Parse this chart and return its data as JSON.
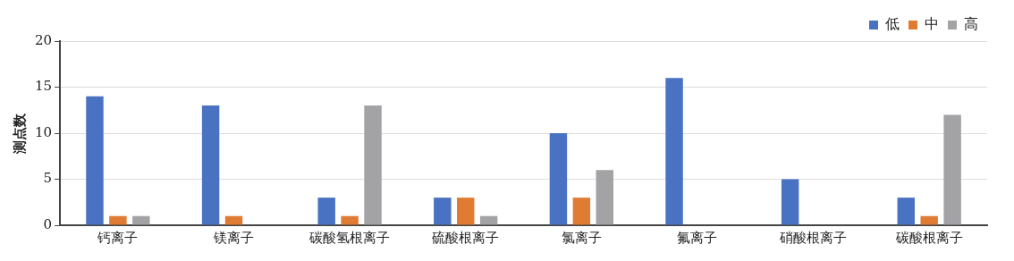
{
  "chart_data": {
    "type": "bar",
    "ylabel": "测点数",
    "categories": [
      "钙离子",
      "镁离子",
      "碳酸氢根离子",
      "硫酸根离子",
      "氯离子",
      "氟离子",
      "硝酸根离子",
      "碳酸根离子"
    ],
    "series": [
      {
        "name": "低",
        "color": "#4a72c2",
        "values": [
          14,
          13,
          3,
          3,
          10,
          16,
          5,
          3
        ]
      },
      {
        "name": "中",
        "color": "#e07b34",
        "values": [
          1,
          1,
          1,
          3,
          3,
          0,
          0,
          1
        ]
      },
      {
        "name": "高",
        "color": "#a3a3a5",
        "values": [
          1,
          0,
          13,
          1,
          6,
          0,
          0,
          12
        ]
      }
    ],
    "ylim": [
      0,
      20
    ],
    "yticks": [
      0,
      5,
      10,
      15,
      20
    ],
    "grid": "y",
    "legend": "top right"
  }
}
